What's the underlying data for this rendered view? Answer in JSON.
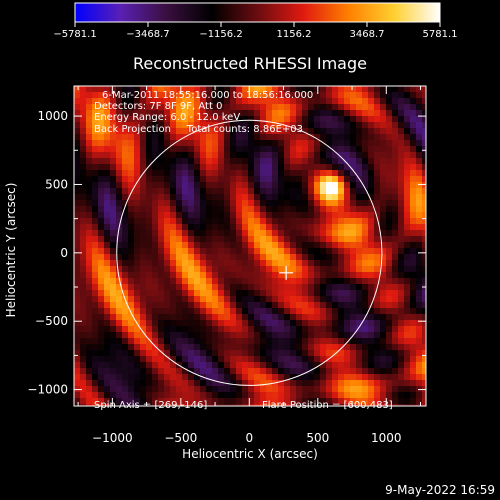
{
  "chart_data": {
    "type": "heatmap",
    "title": "Reconstructed RHESSI Image",
    "xlabel": "Heliocentric X (arcsec)",
    "ylabel": "Heliocentric Y (arcsec)",
    "xlim": [
      -1280,
      1290
    ],
    "ylim": [
      -1120,
      1220
    ],
    "xticks": [
      -1000,
      -500,
      0,
      500,
      1000
    ],
    "yticks": [
      -1000,
      -500,
      0,
      500,
      1000
    ],
    "xtick_labels": [
      "−1000",
      "−500",
      "0",
      "500",
      "1000"
    ],
    "ytick_labels": [
      "−1000",
      "−500",
      "0",
      "500",
      "1000"
    ],
    "colorbar": {
      "min": -5781.1,
      "max": 5781.1,
      "tick_values": [
        -5781.1,
        -3468.7,
        -1156.2,
        1156.2,
        3468.7,
        5781.1
      ],
      "tick_labels": [
        "−5781.1",
        "−3468.7",
        "−1156.2",
        "1156.2",
        "3468.7",
        "5781.1"
      ],
      "colors": [
        "#0000ff",
        "#5a20b4",
        "#3a0f40",
        "#000000",
        "#6a0c10",
        "#e01a10",
        "#ff8000",
        "#ffd030",
        "#ffffff"
      ]
    },
    "annotations": [
      "6-Mar-2011 18:55:16.000 to 18:56:16.000",
      "Detectors: 7F 8F 9F, Att 0",
      "Energy Range: 6.0 - 12.0 keV",
      "Back Projection     Total counts: 8.86E+03"
    ],
    "solar_limb_radius_arcsec": 968,
    "sun_center_arcsec": [
      0,
      0
    ],
    "marker_position_arcsec": [
      269,
      -146
    ],
    "bright_source_arcsec": [
      600,
      483
    ],
    "spin_axis_text": "Spin Axis = [269,-146]",
    "flare_position_text": "Flare Position = [600,483]"
  },
  "footer_date": "9-May-2022 16:59"
}
